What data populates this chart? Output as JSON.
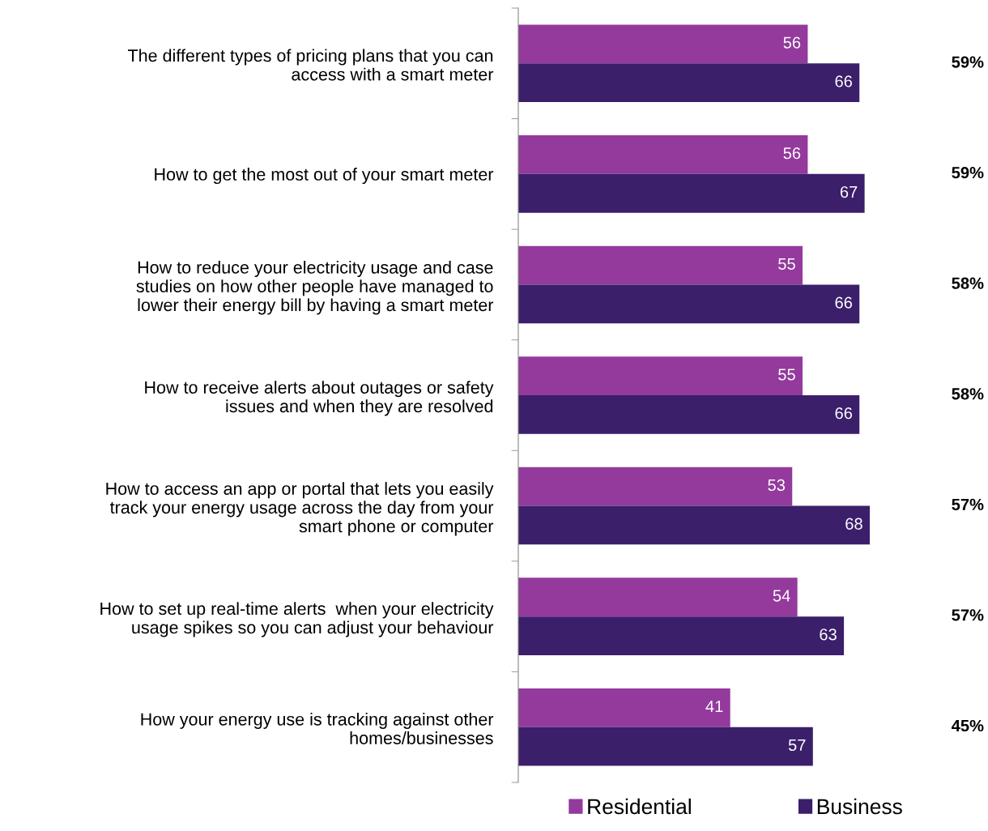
{
  "chart_data": {
    "type": "bar",
    "orientation": "horizontal",
    "categories": [
      "The different types of pricing plans that you can\naccess with a smart meter",
      "How to get the most out of your smart meter",
      "How to reduce your electricity usage and case\nstudies on how other people have managed to\nlower their energy bill by having a smart meter",
      "How to receive alerts about outages or safety\nissues and when they are resolved",
      "How to access an app or portal that lets you easily\ntrack your energy usage across the day from your\nsmart phone or computer",
      "How to set up real-time alerts  when your electricity\nusage spikes so you can adjust your behaviour",
      "How your energy use is tracking against other\nhomes/businesses"
    ],
    "series": [
      {
        "name": "Residential",
        "color": "#933a9c",
        "values": [
          56,
          56,
          55,
          55,
          53,
          54,
          41
        ]
      },
      {
        "name": "Business",
        "color": "#3b1f6b",
        "values": [
          66,
          67,
          66,
          66,
          68,
          63,
          57
        ]
      }
    ],
    "tick_labels": "y",
    "data_labels": true,
    "legend": "bottom",
    "annotations": [
      "59%",
      "59%",
      "58%",
      "58%",
      "57%",
      "57%",
      "45%"
    ]
  }
}
